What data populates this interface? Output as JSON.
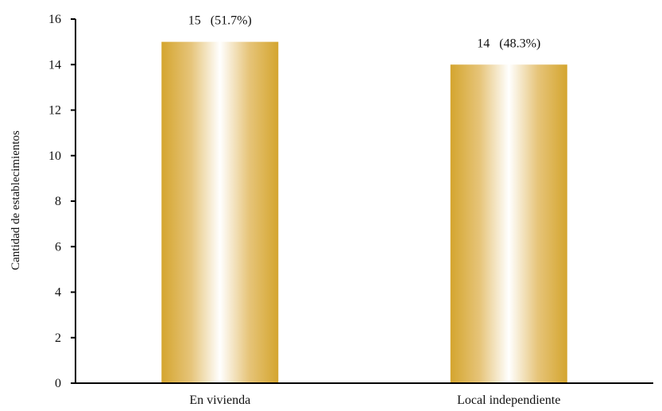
{
  "chart_data": {
    "type": "bar",
    "title": "",
    "xlabel": "",
    "ylabel": "Cantidad de establecimientos",
    "categories": [
      "En vivienda",
      "Local independiente"
    ],
    "values": [
      15,
      14
    ],
    "data_labels": [
      "15   (51.7%)",
      "14   (48.3%)"
    ],
    "ylim": [
      0,
      16
    ],
    "yticks": [
      0,
      2,
      4,
      6,
      8,
      10,
      12,
      14,
      16
    ],
    "grid": false,
    "legend": "none",
    "colors": {
      "bar_edge": "#d4a52e",
      "bar_center": "#ffffff",
      "axis": "#000000"
    }
  }
}
